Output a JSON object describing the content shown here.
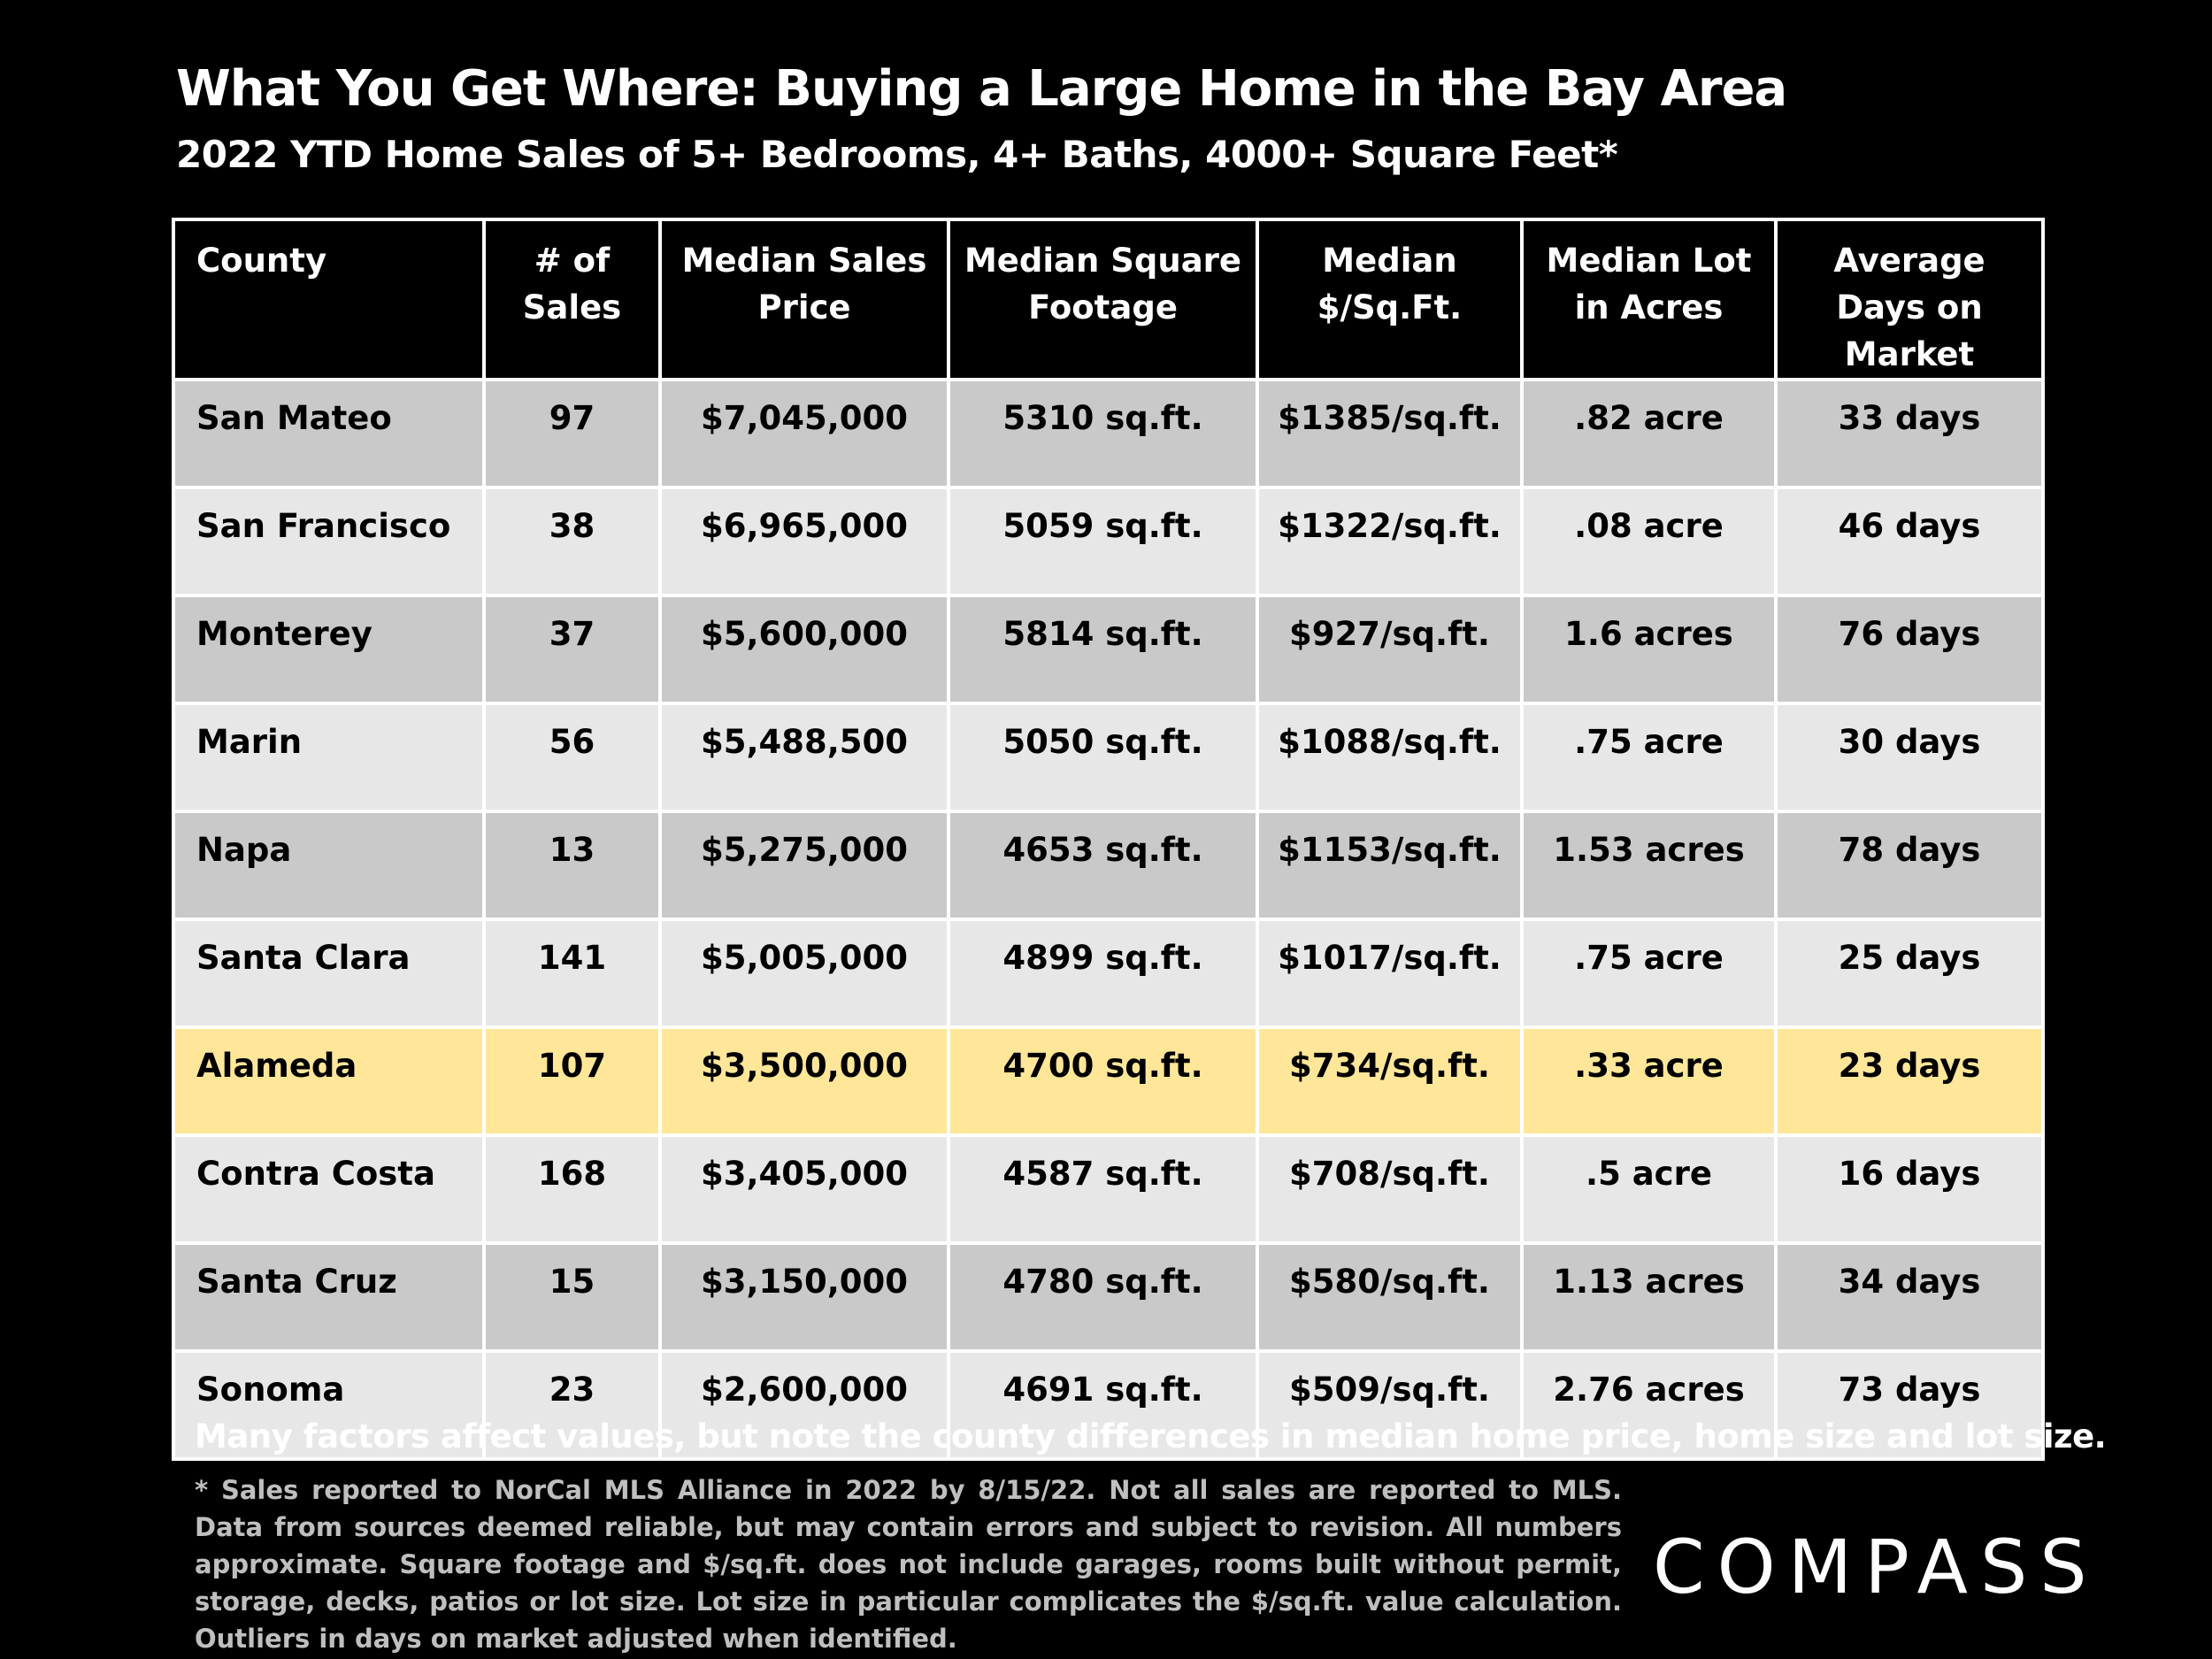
{
  "header": {
    "title": "What You Get Where: Buying a Large Home in the Bay Area",
    "subtitle": "2022 YTD Home Sales of 5+ Bedrooms, 4+ Baths, 4000+ Square Feet*"
  },
  "table": {
    "columns": [
      "County",
      "# of Sales",
      "Median Sales Price",
      "Median Square Footage",
      "Median $/Sq.Ft.",
      "Median Lot in Acres",
      "Average Days on Market"
    ],
    "rows": [
      [
        "San Mateo",
        "97",
        "$7,045,000",
        "5310 sq.ft.",
        "$1385/sq.ft.",
        ".82 acre",
        "33 days"
      ],
      [
        "San Francisco",
        "38",
        "$6,965,000",
        "5059 sq.ft.",
        "$1322/sq.ft.",
        ".08 acre",
        "46 days"
      ],
      [
        "Monterey",
        "37",
        "$5,600,000",
        "5814 sq.ft.",
        "$927/sq.ft.",
        "1.6 acres",
        "76 days"
      ],
      [
        "Marin",
        "56",
        "$5,488,500",
        "5050 sq.ft.",
        "$1088/sq.ft.",
        ".75 acre",
        "30 days"
      ],
      [
        "Napa",
        "13",
        "$5,275,000",
        "4653 sq.ft.",
        "$1153/sq.ft.",
        "1.53 acres",
        "78 days"
      ],
      [
        "Santa Clara",
        "141",
        "$5,005,000",
        "4899 sq.ft.",
        "$1017/sq.ft.",
        ".75 acre",
        "25 days"
      ],
      [
        "Alameda",
        "107",
        "$3,500,000",
        "4700 sq.ft.",
        "$734/sq.ft.",
        ".33 acre",
        "23 days"
      ],
      [
        "Contra Costa",
        "168",
        "$3,405,000",
        "4587 sq.ft.",
        "$708/sq.ft.",
        ".5 acre",
        "16 days"
      ],
      [
        "Santa Cruz",
        "15",
        "$3,150,000",
        "4780 sq.ft.",
        "$580/sq.ft.",
        "1.13 acres",
        "34 days"
      ],
      [
        "Sonoma",
        "23",
        "$2,600,000",
        "4691 sq.ft.",
        "$509/sq.ft.",
        "2.76 acres",
        "73 days"
      ]
    ]
  },
  "note": "Many factors affect values, but note the county differences in median home price, home size and lot size.",
  "footnote": "* Sales reported to NorCal MLS Alliance in 2022 by 8/15/22. Not all sales are reported to MLS. Data from sources deemed reliable, but may contain errors and subject to revision. All numbers approximate. Square footage and $/sq.ft. does not include garages, rooms built without permit, storage, decks, patios or lot size. Lot size in particular complicates the $/sq.ft. value calculation. Outliers in days on market adjusted when identified.",
  "logo": "COMPASS"
}
